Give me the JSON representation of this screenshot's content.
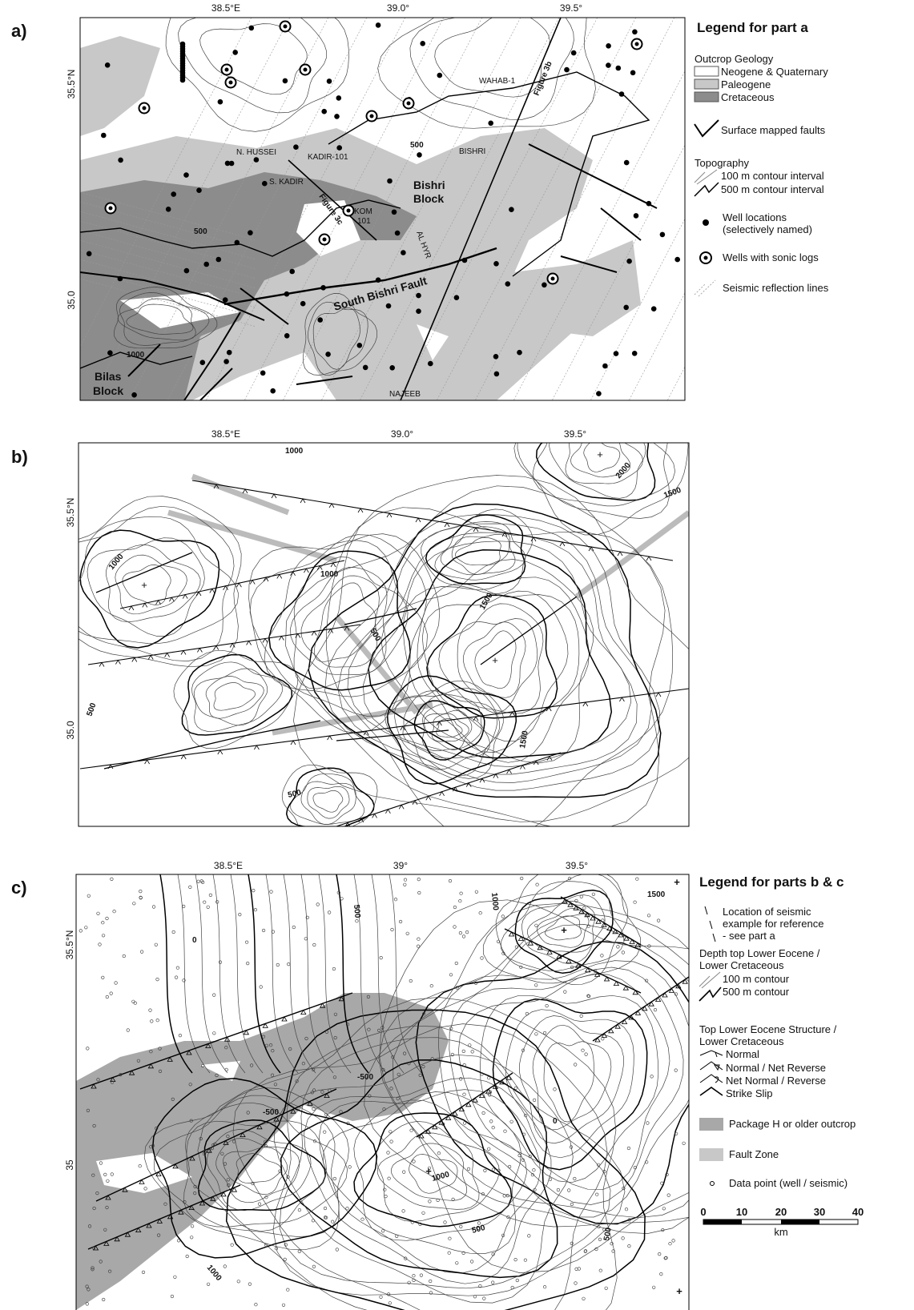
{
  "panel_a": {
    "label": "a)",
    "x_labels": [
      "38.5°E",
      "39.0°",
      "39.5°"
    ],
    "y_labels": [
      "35.5°N",
      "35.0"
    ],
    "map_labels": [
      "Figure 3b",
      "WAHAB-1",
      "500",
      "BISHRI",
      "N. HUSSEI",
      "KADIR-101",
      "S. KADIR",
      "Bishri",
      "Block",
      "KOM",
      "101",
      "Figure 3c",
      "500",
      "AL HYR",
      "South Bishri Fault",
      "1000",
      "Bilas",
      "Block",
      "NAJEEB"
    ]
  },
  "legend_a": {
    "title": "Legend for part a",
    "outcrop_title": "Outcrop Geology",
    "outcrop_items": [
      "Neogene & Quaternary",
      "Paleogene",
      "Cretaceous"
    ],
    "faults": "Surface mapped faults",
    "topography_title": "Topography",
    "topography_items": [
      "100 m contour interval",
      "500 m contour interval"
    ],
    "wells": [
      "Well locations",
      "(selectively named)"
    ],
    "sonic": "Wells with sonic logs",
    "seismic": "Seismic reflection lines"
  },
  "panel_b": {
    "label": "b)",
    "x_labels": [
      "38.5°E",
      "39.0°",
      "39.5°"
    ],
    "y_labels": [
      "35.5°N",
      "35.0"
    ],
    "contour_labels": [
      "1000",
      "2000",
      "1500",
      "1000",
      "1000",
      "500",
      "1500",
      "500",
      "1500",
      "500"
    ]
  },
  "panel_c": {
    "label": "c)",
    "x_labels": [
      "38.5°E",
      "39°",
      "39.5°"
    ],
    "y_labels": [
      "35.5°N",
      "35"
    ],
    "contour_labels": [
      "1000",
      "1500",
      "500",
      "0",
      "-500",
      "-500",
      "0",
      "1000",
      "500",
      "500",
      "1000"
    ]
  },
  "legend_bc": {
    "title": "Legend for parts b & c",
    "location": [
      "Location of seismic",
      "example for reference",
      "- see part a"
    ],
    "depth_title": [
      "Depth top Lower Eocene /",
      "Lower Cretaceous"
    ],
    "depth_items": [
      "100 m contour",
      "500 m contour"
    ],
    "structure_title": [
      "Top Lower Eocene Structure /",
      "Lower Cretaceous"
    ],
    "structure_items": [
      "Normal",
      "Normal / Net Reverse",
      "Net Normal / Reverse",
      "Strike Slip"
    ],
    "package": "Package H or older outcrop",
    "fault_zone": "Fault Zone",
    "data_point": "Data point (well / seismic)",
    "scale_labels": [
      "0",
      "10",
      "20",
      "30",
      "40"
    ],
    "scale_unit": "km"
  }
}
